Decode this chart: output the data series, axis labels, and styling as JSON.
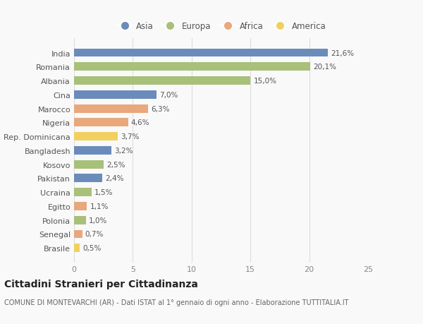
{
  "countries": [
    "India",
    "Romania",
    "Albania",
    "Cina",
    "Marocco",
    "Nigeria",
    "Rep. Dominicana",
    "Bangladesh",
    "Kosovo",
    "Pakistan",
    "Ucraina",
    "Egitto",
    "Polonia",
    "Senegal",
    "Brasile"
  ],
  "values": [
    21.6,
    20.1,
    15.0,
    7.0,
    6.3,
    4.6,
    3.7,
    3.2,
    2.5,
    2.4,
    1.5,
    1.1,
    1.0,
    0.7,
    0.5
  ],
  "labels": [
    "21,6%",
    "20,1%",
    "15,0%",
    "7,0%",
    "6,3%",
    "4,6%",
    "3,7%",
    "3,2%",
    "2,5%",
    "2,4%",
    "1,5%",
    "1,1%",
    "1,0%",
    "0,7%",
    "0,5%"
  ],
  "continents": [
    "Asia",
    "Europa",
    "Europa",
    "Asia",
    "Africa",
    "Africa",
    "America",
    "Asia",
    "Europa",
    "Asia",
    "Europa",
    "Africa",
    "Europa",
    "Africa",
    "America"
  ],
  "colors": {
    "Asia": "#6b8cba",
    "Europa": "#a8c07a",
    "Africa": "#e8a87c",
    "America": "#f0d060"
  },
  "legend_order": [
    "Asia",
    "Europa",
    "Africa",
    "America"
  ],
  "title": "Cittadini Stranieri per Cittadinanza",
  "subtitle": "COMUNE DI MONTEVARCHI (AR) - Dati ISTAT al 1° gennaio di ogni anno - Elaborazione TUTTITALIA.IT",
  "xlim": [
    0,
    25
  ],
  "xticks": [
    0,
    5,
    10,
    15,
    20,
    25
  ],
  "background_color": "#f9f9f9",
  "bar_height": 0.6,
  "title_fontsize": 10,
  "subtitle_fontsize": 7,
  "label_fontsize": 7.5,
  "tick_fontsize": 8,
  "legend_fontsize": 8.5
}
